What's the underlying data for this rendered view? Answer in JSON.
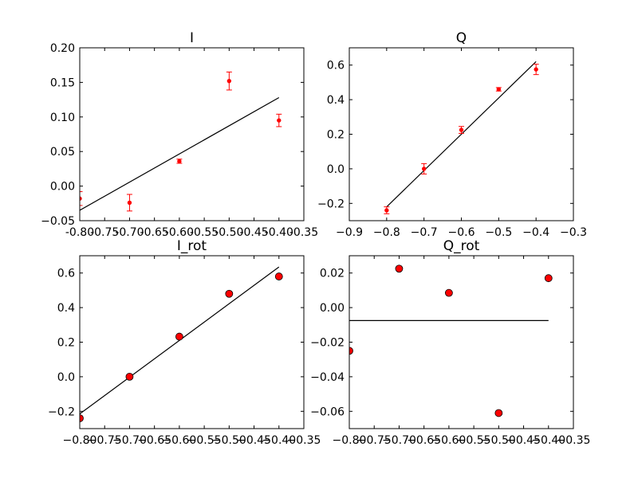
{
  "colors": {
    "marker": "#ff0000",
    "markerEdge": "#000000",
    "line": "#000000",
    "axes": "#000000"
  },
  "chart_data": [
    {
      "title": "I",
      "type": "scatter",
      "marker_style": "dot-errorbar",
      "x": [
        -0.8,
        -0.7,
        -0.6,
        -0.5,
        -0.4
      ],
      "y": [
        -0.018,
        -0.024,
        0.036,
        0.152,
        0.095
      ],
      "yerr": [
        0.01,
        0.012,
        0.003,
        0.013,
        0.009
      ],
      "fit_line": {
        "x": [
          -0.8,
          -0.4
        ],
        "y": [
          -0.035,
          0.128
        ]
      },
      "xlim": [
        -0.8,
        -0.35
      ],
      "ylim": [
        -0.05,
        0.2
      ],
      "xticks": [
        "-0.80",
        "-0.75",
        "-0.70",
        "-0.65",
        "-0.60",
        "-0.55",
        "-0.50",
        "-0.45",
        "-0.40",
        "-0.35"
      ],
      "xtick_values": [
        -0.8,
        -0.75,
        -0.7,
        -0.65,
        -0.6,
        -0.55,
        -0.5,
        -0.45,
        -0.4,
        -0.35
      ],
      "yticks": [
        "−0.05",
        "0.00",
        "0.05",
        "0.10",
        "0.15",
        "0.20"
      ],
      "ytick_values": [
        -0.05,
        0,
        0.05,
        0.1,
        0.15,
        0.2
      ]
    },
    {
      "title": "Q",
      "type": "scatter",
      "marker_style": "dot-errorbar",
      "x": [
        -0.8,
        -0.7,
        -0.6,
        -0.5,
        -0.4
      ],
      "y": [
        -0.24,
        0.0,
        0.225,
        0.46,
        0.575
      ],
      "yerr": [
        0.02,
        0.03,
        0.02,
        0.01,
        0.03
      ],
      "fit_line": {
        "x": [
          -0.8,
          -0.4
        ],
        "y": [
          -0.22,
          0.62
        ]
      },
      "xlim": [
        -0.9,
        -0.3
      ],
      "ylim": [
        -0.3,
        0.7
      ],
      "xticks": [
        "−0.9",
        "−0.8",
        "−0.7",
        "−0.6",
        "−0.5",
        "−0.4",
        "−0.3"
      ],
      "xtick_values": [
        -0.9,
        -0.8,
        -0.7,
        -0.6,
        -0.5,
        -0.4,
        -0.3
      ],
      "yticks": [
        "−0.2",
        "0.0",
        "0.2",
        "0.4",
        "0.6"
      ],
      "ytick_values": [
        -0.2,
        0,
        0.2,
        0.4,
        0.6
      ]
    },
    {
      "title": "I_rot",
      "type": "scatter",
      "marker_style": "circle",
      "x": [
        -0.8,
        -0.7,
        -0.6,
        -0.5,
        -0.4
      ],
      "y": [
        -0.24,
        0.0,
        0.232,
        0.48,
        0.58
      ],
      "fit_line": {
        "x": [
          -0.8,
          -0.4
        ],
        "y": [
          -0.215,
          0.635
        ]
      },
      "xlim": [
        -0.8,
        -0.35
      ],
      "ylim": [
        -0.3,
        0.7
      ],
      "xticks": [
        "−0.80",
        "−0.75",
        "−0.70",
        "−0.65",
        "−0.60",
        "−0.55",
        "−0.50",
        "−0.45",
        "−0.40",
        "−0.35"
      ],
      "xtick_values": [
        -0.8,
        -0.75,
        -0.7,
        -0.65,
        -0.6,
        -0.55,
        -0.5,
        -0.45,
        -0.4,
        -0.35
      ],
      "yticks": [
        "−0.2",
        "0.0",
        "0.2",
        "0.4",
        "0.6"
      ],
      "ytick_values": [
        -0.2,
        0,
        0.2,
        0.4,
        0.6
      ]
    },
    {
      "title": "Q_rot",
      "type": "scatter",
      "marker_style": "circle",
      "x": [
        -0.8,
        -0.7,
        -0.6,
        -0.5,
        -0.4
      ],
      "y": [
        -0.025,
        0.0225,
        0.0085,
        -0.061,
        0.017
      ],
      "fit_line": {
        "x": [
          -0.8,
          -0.4
        ],
        "y": [
          -0.0075,
          -0.0075
        ]
      },
      "xlim": [
        -0.8,
        -0.35
      ],
      "ylim": [
        -0.07,
        0.03
      ],
      "xticks": [
        "−0.80",
        "−0.75",
        "−0.70",
        "−0.65",
        "−0.60",
        "−0.55",
        "−0.50",
        "−0.45",
        "−0.40",
        "−0.35"
      ],
      "xtick_values": [
        -0.8,
        -0.75,
        -0.7,
        -0.65,
        -0.6,
        -0.55,
        -0.5,
        -0.45,
        -0.4,
        -0.35
      ],
      "yticks": [
        "0.02",
        "0.00",
        "−0.02",
        "−0.04",
        "−0.06"
      ],
      "ytick_values": [
        0.02,
        0,
        -0.02,
        -0.04,
        -0.06
      ]
    }
  ]
}
